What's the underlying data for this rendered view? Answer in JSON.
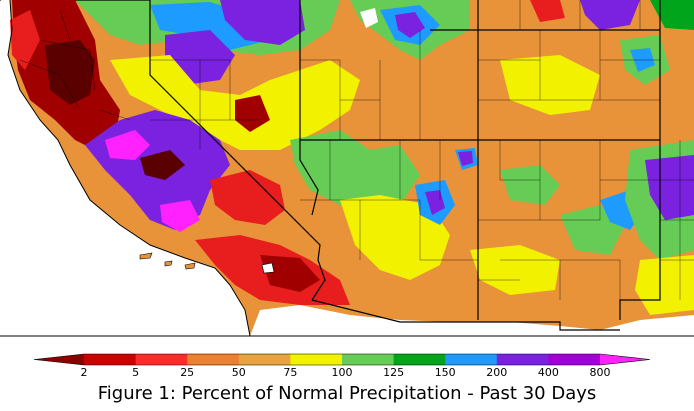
{
  "caption": "Figure 1: Percent of Normal Precipitation - Past 30 Days",
  "legend": {
    "ticks": [
      "2",
      "5",
      "25",
      "50",
      "75",
      "100",
      "125",
      "150",
      "200",
      "400",
      "800"
    ],
    "colors": [
      "#8b0000",
      "#cc0000",
      "#ff2a2a",
      "#f07f2e",
      "#e8a33a",
      "#f2f200",
      "#66cc55",
      "#00a51c",
      "#1e9bff",
      "#7a22e0",
      "#a100d6",
      "#ff22ff"
    ]
  },
  "map": {
    "background_color": "#e8933a",
    "outside_color": "#ffffff",
    "region_colors": {
      "driest": "#5a0000",
      "very_dry": "#a00000",
      "dry": "#e81e1e",
      "below_normal": "#f07f2e",
      "near_normal": "#f2f200",
      "above_normal": "#66cc55",
      "wet": "#00a51c",
      "very_wet": "#1e9bff",
      "wettest": "#7a22e0",
      "extreme": "#ff22ff"
    }
  }
}
